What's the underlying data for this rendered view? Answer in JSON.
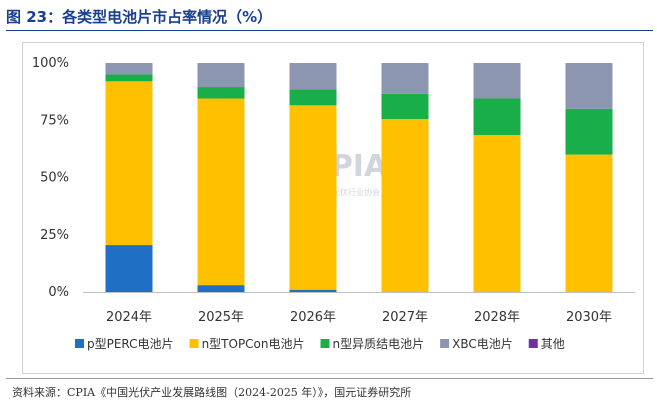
{
  "figure": {
    "title": "图 23：各类型电池片市占率情况（%）",
    "source": "资料来源：CPIA《中国光伏产业发展路线图（2024-2025 年）》，国元证券研究所",
    "watermark": {
      "text": "CPIA",
      "subtext": "中国光伏行业协会"
    }
  },
  "chart_data": {
    "type": "bar",
    "stacked": true,
    "categories": [
      "2024年",
      "2025年",
      "2026年",
      "2027年",
      "2028年",
      "2030年"
    ],
    "series": [
      {
        "name": "p型PERC电池片",
        "color": "#1f6fc5",
        "values": [
          20.5,
          3,
          1,
          0,
          0,
          0
        ]
      },
      {
        "name": "n型TOPCon电池片",
        "color": "#ffc000",
        "values": [
          71.5,
          81.5,
          80.5,
          75.5,
          68.5,
          60
        ]
      },
      {
        "name": "n型异质结电池片",
        "color": "#1aae4a",
        "values": [
          3,
          5,
          7,
          11,
          16,
          20
        ]
      },
      {
        "name": "XBC电池片",
        "color": "#8c96b0",
        "values": [
          5,
          10.5,
          11.5,
          13.5,
          15.5,
          20
        ]
      },
      {
        "name": "其他",
        "color": "#7030a0",
        "values": [
          0,
          0,
          0,
          0,
          0,
          0
        ]
      }
    ],
    "ylim": [
      0,
      100
    ],
    "yticks": [
      0,
      25,
      50,
      75,
      100
    ],
    "ytick_labels": [
      "0%",
      "25%",
      "50%",
      "75%",
      "100%"
    ],
    "grid": false,
    "legend": "bottom",
    "xlabel": "",
    "ylabel": ""
  }
}
